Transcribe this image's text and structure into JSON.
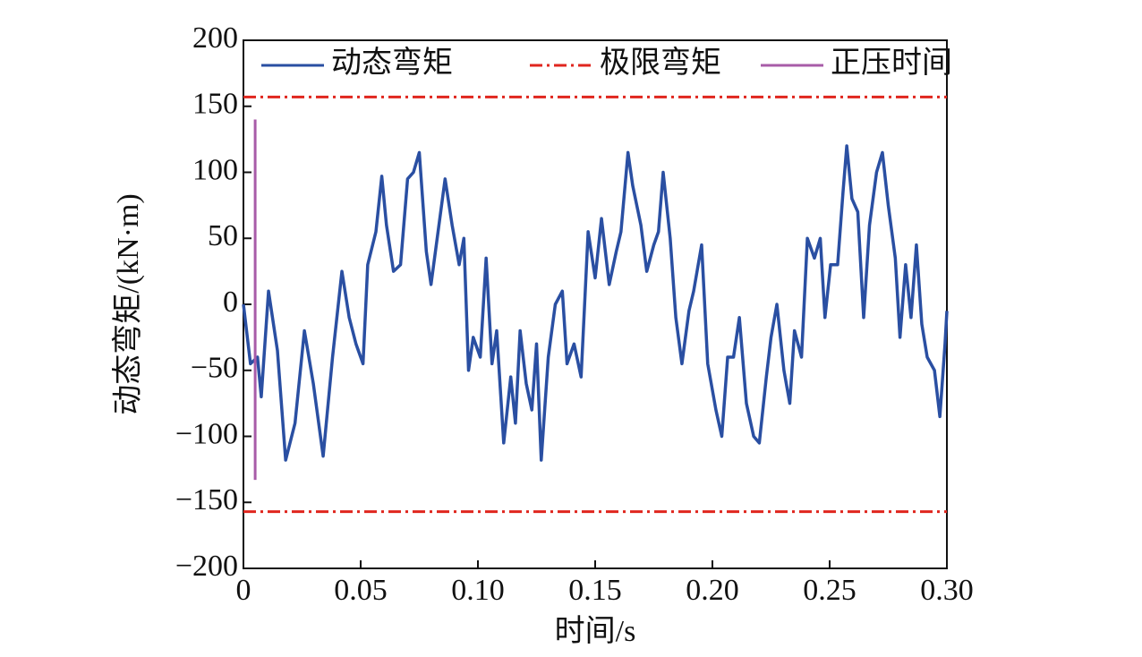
{
  "chart_data": {
    "type": "line",
    "xlabel": "时间/s",
    "ylabel": "动态弯矩/(kN·m)",
    "xlim": [
      0,
      0.3
    ],
    "ylim": [
      -200,
      200
    ],
    "xticks": [
      0,
      0.05,
      {
        "value": 0.1,
        "label": "0.10"
      },
      0.15,
      {
        "value": 0.2,
        "label": "0.20"
      },
      0.25,
      {
        "value": 0.3,
        "label": "0.30"
      }
    ],
    "yticks": [
      {
        "value": -200,
        "label": "−200"
      },
      {
        "value": -150,
        "label": "−150"
      },
      {
        "value": -100,
        "label": "−100"
      },
      {
        "value": -50,
        "label": "−50"
      },
      0,
      50,
      100,
      150,
      200
    ],
    "series": [
      {
        "name": "动态弯矩",
        "color": "#2a4fa2",
        "x": [
          0,
          0.003,
          0.006,
          0.0076,
          0.0107,
          0.0145,
          0.018,
          0.022,
          0.026,
          0.0298,
          0.034,
          0.038,
          0.042,
          0.0451,
          0.048,
          0.051,
          0.053,
          0.0565,
          0.059,
          0.061,
          0.064,
          0.067,
          0.07,
          0.0725,
          0.075,
          0.078,
          0.08,
          0.083,
          0.086,
          0.089,
          0.092,
          0.094,
          0.096,
          0.098,
          0.101,
          0.1035,
          0.106,
          0.108,
          0.111,
          0.114,
          0.116,
          0.118,
          0.1206,
          0.123,
          0.125,
          0.127,
          0.13,
          0.133,
          0.136,
          0.138,
          0.141,
          0.144,
          0.147,
          0.15,
          0.1527,
          0.156,
          0.159,
          0.161,
          0.164,
          0.166,
          0.1695,
          0.172,
          0.175,
          0.177,
          0.179,
          0.182,
          0.1844,
          0.187,
          0.19,
          0.192,
          0.1954,
          0.198,
          0.2015,
          0.204,
          0.2065,
          0.209,
          0.2115,
          0.2145,
          0.2176,
          0.22,
          0.223,
          0.225,
          0.2275,
          0.2305,
          0.233,
          0.235,
          0.238,
          0.2405,
          0.2435,
          0.246,
          0.248,
          0.2504,
          0.2534,
          0.2557,
          0.2573,
          0.2595,
          0.262,
          0.2645,
          0.267,
          0.27,
          0.2725,
          0.275,
          0.278,
          0.28,
          0.2824,
          0.2847,
          0.287,
          0.2893,
          0.2916,
          0.2947,
          0.297,
          0.2992,
          0.3
        ],
        "values": [
          0,
          -45,
          -40,
          -70,
          10,
          -35,
          -118,
          -90,
          -20,
          -60,
          -115,
          -40,
          25,
          -10,
          -30,
          -45,
          30,
          55,
          97,
          60,
          25,
          30,
          95,
          100,
          115,
          40,
          15,
          55,
          95,
          60,
          30,
          50,
          -50,
          -25,
          -40,
          35,
          -45,
          -20,
          -105,
          -55,
          -90,
          -20,
          -60,
          -80,
          -30,
          -118,
          -40,
          0,
          10,
          -45,
          -30,
          -55,
          55,
          20,
          65,
          15,
          40,
          55,
          115,
          90,
          60,
          25,
          45,
          55,
          100,
          50,
          -10,
          -45,
          -5,
          10,
          45,
          -45,
          -80,
          -100,
          -40,
          -40,
          -10,
          -75,
          -100,
          -105,
          -55,
          -25,
          0,
          -50,
          -75,
          -20,
          -40,
          50,
          35,
          50,
          -10,
          30,
          30,
          85,
          120,
          80,
          70,
          -10,
          60,
          100,
          115,
          75,
          35,
          -25,
          30,
          -10,
          45,
          -15,
          -40,
          -50,
          -85,
          -30,
          -5
        ]
      },
      {
        "name": "极限弯矩",
        "color": "#e0261e",
        "dash": true,
        "x": [
          0,
          0.3
        ],
        "values": [
          157,
          -157
        ]
      },
      {
        "name": "正压时间",
        "color": "#a85ca8",
        "x": [
          0.005,
          0.005
        ],
        "values": [
          -133,
          140
        ]
      }
    ]
  }
}
